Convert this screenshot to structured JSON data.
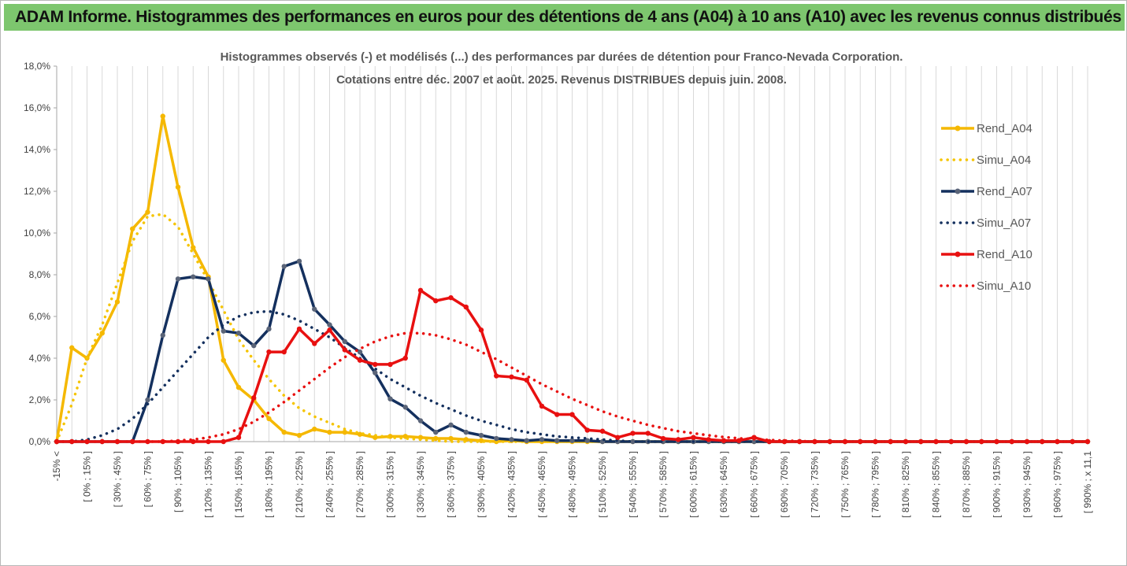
{
  "header": {
    "title": "ADAM Informe. Histogrammes des performances en euros pour des détentions de 4 ans (A04) à 10 ans (A10) avec les revenus connus distribués"
  },
  "chart_data": {
    "type": "line",
    "title_lines": [
      "Histogrammes observés (-)  et modélisés (...) des performances par durées de détention pour Franco-Nevada Corporation.",
      "Cotations entre déc. 2007 et août. 2025. Revenus DISTRIBUES depuis juin. 2008."
    ],
    "ylim": [
      0,
      18
    ],
    "y_ticks": [
      0,
      2,
      4,
      6,
      8,
      10,
      12,
      14,
      16,
      18
    ],
    "y_tick_labels": [
      "0,0%",
      "2,0%",
      "4,0%",
      "6,0%",
      "8,0%",
      "10,0%",
      "12,0%",
      "14,0%",
      "16,0%",
      "18,0%"
    ],
    "x_tick_labels": [
      "-15% <",
      "[ 0% ; 15% ]",
      "[ 30% ; 45% ]",
      "[ 60% ; 75% ]",
      "[ 90% ; 105% ]",
      "[ 120% ; 135% ]",
      "[ 150% ; 165% ]",
      "[ 180% ; 195% ]",
      "[ 210% ; 225% ]",
      "[ 240% ; 255% ]",
      "[ 270% ; 285% ]",
      "[ 300% ; 315% ]",
      "[ 330% ; 345% ]",
      "[ 360% ; 375% ]",
      "[ 390% ; 405% ]",
      "[ 420% ; 435% ]",
      "[ 450% ; 465% ]",
      "[ 480% ; 495% ]",
      "[ 510% ; 525% ]",
      "[ 540% ; 555% ]",
      "[ 570% ; 585% ]",
      "[ 600% ; 615% ]",
      "[ 630% ; 645% ]",
      "[ 660% ; 675% ]",
      "[ 690% ; 705% ]",
      "[ 720% ; 735% ]",
      "[ 750% ; 765% ]",
      "[ 780% ; 795% ]",
      "[ 810% ; 825% ]",
      "[ 840% ; 855% ]",
      "[ 870% ; 885% ]",
      "[ 900% ; 915% ]",
      "[ 930% ; 945% ]",
      "[ 960% ; 975% ]",
      "[ 990% ; x 11,1"
    ],
    "legend_position": "right",
    "grid": "vertical",
    "series": [
      {
        "name": "Rend_A04",
        "style": "solid",
        "color": "#f5b800",
        "values": [
          0.0,
          4.5,
          4.0,
          5.2,
          6.7,
          10.2,
          11.0,
          15.6,
          12.2,
          9.3,
          7.9,
          3.9,
          2.6,
          2.0,
          1.1,
          0.45,
          0.3,
          0.6,
          0.45,
          0.45,
          0.35,
          0.2,
          0.25,
          0.25,
          0.2,
          0.15,
          0.15,
          0.1,
          0.05,
          0.0,
          0.05,
          0.0,
          0.0,
          0.0,
          0.0,
          0.0,
          0.0,
          0.0,
          0.0,
          0.0,
          0.0,
          0.0,
          0.0,
          0.0,
          0.0,
          0.0,
          0.0,
          0.0,
          0.0,
          0.0,
          0.0,
          0.0,
          0.0,
          0.0,
          0.0,
          0.0,
          0.0,
          0.0,
          0.0,
          0.0,
          0.0,
          0.0,
          0.0,
          0.0,
          0.0,
          0.0,
          0.0,
          0.0,
          0.0
        ]
      },
      {
        "name": "Simu_A04",
        "style": "dotted",
        "color": "#f5c400",
        "values": [
          0.0,
          1.8,
          4.0,
          5.6,
          7.6,
          9.6,
          10.8,
          10.9,
          10.3,
          9.0,
          7.7,
          6.3,
          4.9,
          3.9,
          3.0,
          2.2,
          1.6,
          1.2,
          0.9,
          0.6,
          0.4,
          0.3,
          0.2,
          0.15,
          0.1,
          0.05,
          0.0,
          0.0,
          0.0,
          0.0,
          0.0,
          0.0,
          0.0,
          0.0,
          0.0,
          0.0,
          0.0,
          0.0,
          0.0,
          0.0,
          0.0,
          0.0,
          0.0,
          0.0,
          0.0,
          0.0,
          0.0,
          0.0,
          0.0,
          0.0,
          0.0,
          0.0,
          0.0,
          0.0,
          0.0,
          0.0,
          0.0,
          0.0,
          0.0,
          0.0,
          0.0,
          0.0,
          0.0,
          0.0,
          0.0,
          0.0,
          0.0,
          0.0,
          0.0
        ]
      },
      {
        "name": "Rend_A07",
        "style": "solid",
        "color": "#14305e",
        "values": [
          0.0,
          0.0,
          0.0,
          0.0,
          0.0,
          0.0,
          2.0,
          5.1,
          7.8,
          7.9,
          7.8,
          5.3,
          5.2,
          4.6,
          5.4,
          8.4,
          8.65,
          6.35,
          5.6,
          4.8,
          4.3,
          3.3,
          2.05,
          1.65,
          1.0,
          0.45,
          0.8,
          0.45,
          0.3,
          0.15,
          0.1,
          0.05,
          0.1,
          0.05,
          0.05,
          0.05,
          0.0,
          0.0,
          0.0,
          0.0,
          0.0,
          0.0,
          0.0,
          0.0,
          0.0,
          0.0,
          0.0,
          0.0,
          0.0,
          0.0,
          0.0,
          0.0,
          0.0,
          0.0,
          0.0,
          0.0,
          0.0,
          0.0,
          0.0,
          0.0,
          0.0,
          0.0,
          0.0,
          0.0,
          0.0,
          0.0,
          0.0,
          0.0,
          0.0
        ]
      },
      {
        "name": "Simu_A07",
        "style": "dotted",
        "color": "#14305e",
        "values": [
          0.0,
          0.0,
          0.1,
          0.3,
          0.6,
          1.1,
          1.8,
          2.6,
          3.4,
          4.2,
          5.0,
          5.6,
          6.0,
          6.2,
          6.25,
          6.1,
          5.8,
          5.4,
          5.0,
          4.5,
          4.0,
          3.5,
          3.0,
          2.6,
          2.2,
          1.85,
          1.55,
          1.25,
          1.0,
          0.8,
          0.6,
          0.45,
          0.35,
          0.25,
          0.2,
          0.15,
          0.1,
          0.05,
          0.0,
          0.0,
          0.0,
          0.0,
          0.0,
          0.0,
          0.0,
          0.0,
          0.0,
          0.0,
          0.0,
          0.0,
          0.0,
          0.0,
          0.0,
          0.0,
          0.0,
          0.0,
          0.0,
          0.0,
          0.0,
          0.0,
          0.0,
          0.0,
          0.0,
          0.0,
          0.0,
          0.0,
          0.0,
          0.0,
          0.0
        ]
      },
      {
        "name": "Rend_A10",
        "style": "solid",
        "color": "#e81010",
        "values": [
          0.0,
          0.0,
          0.0,
          0.0,
          0.0,
          0.0,
          0.0,
          0.0,
          0.0,
          0.0,
          0.0,
          0.0,
          0.2,
          2.1,
          4.3,
          4.3,
          5.4,
          4.7,
          5.35,
          4.4,
          3.9,
          3.7,
          3.7,
          4.0,
          7.25,
          6.75,
          6.9,
          6.45,
          5.35,
          3.15,
          3.1,
          2.95,
          1.7,
          1.3,
          1.3,
          0.55,
          0.5,
          0.2,
          0.4,
          0.4,
          0.15,
          0.1,
          0.2,
          0.1,
          0.05,
          0.05,
          0.2,
          0.0,
          0.0,
          0.0,
          0.0,
          0.0,
          0.0,
          0.0,
          0.0,
          0.0,
          0.0,
          0.0,
          0.0,
          0.0,
          0.0,
          0.0,
          0.0,
          0.0,
          0.0,
          0.0,
          0.0,
          0.0,
          0.0
        ]
      },
      {
        "name": "Simu_A10",
        "style": "dotted",
        "color": "#e81010",
        "values": [
          0.0,
          0.0,
          0.0,
          0.0,
          0.0,
          0.0,
          0.0,
          0.0,
          0.05,
          0.1,
          0.2,
          0.35,
          0.6,
          0.95,
          1.4,
          1.9,
          2.45,
          3.0,
          3.55,
          4.05,
          4.45,
          4.8,
          5.05,
          5.2,
          5.2,
          5.1,
          4.9,
          4.65,
          4.3,
          3.95,
          3.55,
          3.15,
          2.75,
          2.4,
          2.05,
          1.75,
          1.45,
          1.2,
          1.0,
          0.8,
          0.65,
          0.5,
          0.4,
          0.3,
          0.22,
          0.16,
          0.12,
          0.08,
          0.05,
          0.03,
          0.0,
          0.0,
          0.0,
          0.0,
          0.0,
          0.0,
          0.0,
          0.0,
          0.0,
          0.0,
          0.0,
          0.0,
          0.0,
          0.0,
          0.0,
          0.0,
          0.0,
          0.0,
          0.0
        ]
      }
    ]
  }
}
